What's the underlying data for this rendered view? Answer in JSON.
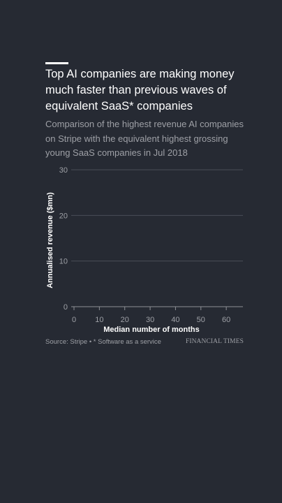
{
  "header": {
    "title": "Top AI companies are making money much faster than previous waves of equivalent SaaS* companies",
    "subtitle": "Comparison of the highest revenue AI companies on Stripe with the equivalent highest grossing young SaaS companies in Jul 2018"
  },
  "chart_data": {
    "type": "line",
    "xlabel": "Median number of months",
    "ylabel": "Annualised revenue ($mn)",
    "xlim": [
      0,
      66
    ],
    "ylim": [
      0,
      30
    ],
    "x_ticks": [
      0,
      10,
      20,
      30,
      40,
      50,
      60
    ],
    "y_ticks": [
      0,
      10,
      20,
      30
    ],
    "grid": true,
    "series": []
  },
  "footer": {
    "source": "Source: Stripe • * Software as a service",
    "brand": "FINANCIAL TIMES"
  },
  "colors": {
    "background": "#262a33",
    "title": "#ffffff",
    "muted_text": "#9ea0a6",
    "gridline": "#4a4e57",
    "axis": "#8e9096"
  }
}
